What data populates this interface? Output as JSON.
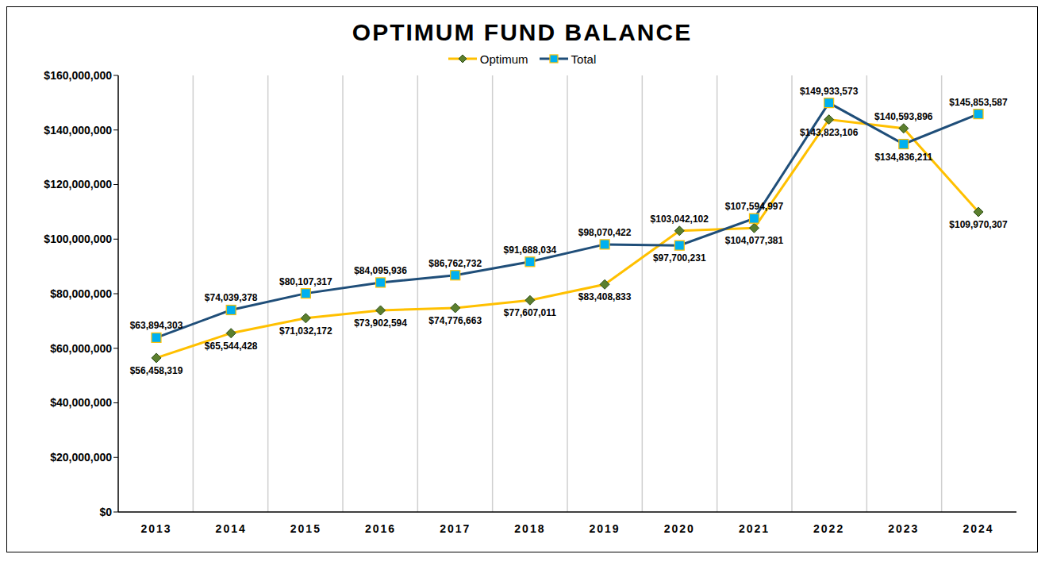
{
  "chart_data": {
    "type": "line",
    "title": "OPTIMUM FUND BALANCE",
    "categories": [
      "2013",
      "2014",
      "2015",
      "2016",
      "2017",
      "2018",
      "2019",
      "2020",
      "2021",
      "2022",
      "2023",
      "2024"
    ],
    "series": [
      {
        "name": "Optimum",
        "color": "#FFC000",
        "marker": "diamond",
        "values": [
          56458319,
          65544428,
          71032172,
          73902594,
          74776663,
          77607011,
          83408833,
          103042102,
          104077381,
          143823106,
          140593896,
          109970307
        ],
        "value_labels": [
          "$56,458,319",
          "$65,544,428",
          "$71,032,172",
          "$73,902,594",
          "$74,776,663",
          "$77,607,011",
          "$83,408,833",
          "$103,042,102",
          "$104,077,381",
          "$143,823,106",
          "$140,593,896",
          "$109,970,307"
        ]
      },
      {
        "name": "Total",
        "color": "#1F4E79",
        "marker": "square",
        "values": [
          63894303,
          74039378,
          80107317,
          84095936,
          86762732,
          91688034,
          98070422,
          97700231,
          107594997,
          149933573,
          134836211,
          145853587
        ],
        "value_labels": [
          "$63,894,303",
          "$74,039,378",
          "$80,107,317",
          "$84,095,936",
          "$86,762,732",
          "$91,688,034",
          "$98,070,422",
          "$97,700,231",
          "$107,594,997",
          "$149,933,573",
          "$134,836,211",
          "$145,853,587"
        ]
      }
    ],
    "ylim": [
      0,
      160000000
    ],
    "yticks": [
      {
        "value": 0,
        "label": "$0"
      },
      {
        "value": 20000000,
        "label": "$20,000,000"
      },
      {
        "value": 40000000,
        "label": "$40,000,000"
      },
      {
        "value": 60000000,
        "label": "$60,000,000"
      },
      {
        "value": 80000000,
        "label": "$80,000,000"
      },
      {
        "value": 100000000,
        "label": "$100,000,000"
      },
      {
        "value": 120000000,
        "label": "$120,000,000"
      },
      {
        "value": 140000000,
        "label": "$140,000,000"
      },
      {
        "value": 160000000,
        "label": "$160,000,000"
      }
    ],
    "grid": true,
    "legend": "top",
    "data_labels": true
  }
}
